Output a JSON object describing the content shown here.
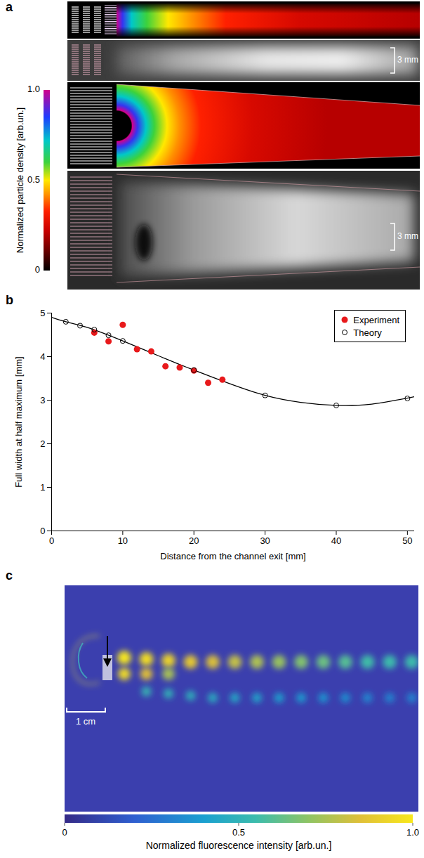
{
  "figure": {
    "panel_labels": [
      "a",
      "b",
      "c"
    ],
    "a": {
      "colorbar": {
        "title": "Normalized particle density [arb.un.]",
        "range": [
          0,
          1
        ],
        "ticks": [
          0,
          0.5,
          {
            "value": 1,
            "label": "1.0"
          }
        ]
      },
      "scale_bars": [
        "3 mm",
        "3 mm"
      ]
    },
    "c": {
      "colorbar": {
        "title": "Normalized fluorescence intensity [arb.un.]",
        "range": [
          0,
          1
        ],
        "ticks": [
          0,
          0.5,
          {
            "value": 1,
            "label": "1.0"
          }
        ]
      },
      "scale_bar": "1 cm"
    }
  },
  "chart_data": {
    "type": "scatter",
    "xlabel": "Distance from the channel exit [mm]",
    "ylabel": "Full width at half maximum [mm]",
    "xlim": [
      0,
      51
    ],
    "xticks": [
      0,
      10,
      20,
      30,
      40,
      50
    ],
    "ylim": [
      0,
      5
    ],
    "yticks": [
      0,
      1,
      2,
      3,
      4,
      5
    ],
    "grid": false,
    "legend": "top-right",
    "series": [
      {
        "name": "Experiment",
        "type": "scatter",
        "marker": "circle",
        "color": "#e8191b",
        "x": [
          6,
          8,
          10,
          12,
          14,
          16,
          18,
          20,
          22,
          24
        ],
        "values": [
          4.55,
          4.35,
          4.73,
          4.17,
          4.12,
          3.78,
          3.75,
          3.68,
          3.4,
          3.47
        ]
      },
      {
        "name": "Theory",
        "type": "scatter",
        "marker": "open_circle",
        "color": "#000000",
        "x": [
          2,
          4,
          6,
          8,
          10,
          20,
          30,
          40,
          50
        ],
        "values": [
          4.8,
          4.71,
          4.62,
          4.49,
          4.36,
          3.69,
          3.11,
          2.88,
          3.04
        ],
        "curve": {
          "line_style": "solid",
          "x": [
            0,
            2,
            5,
            10,
            15,
            20,
            25,
            30,
            35,
            40,
            45,
            51
          ],
          "values": [
            4.9,
            4.8,
            4.67,
            4.36,
            4.02,
            3.69,
            3.38,
            3.11,
            2.95,
            2.88,
            2.91,
            3.08
          ]
        }
      }
    ]
  }
}
